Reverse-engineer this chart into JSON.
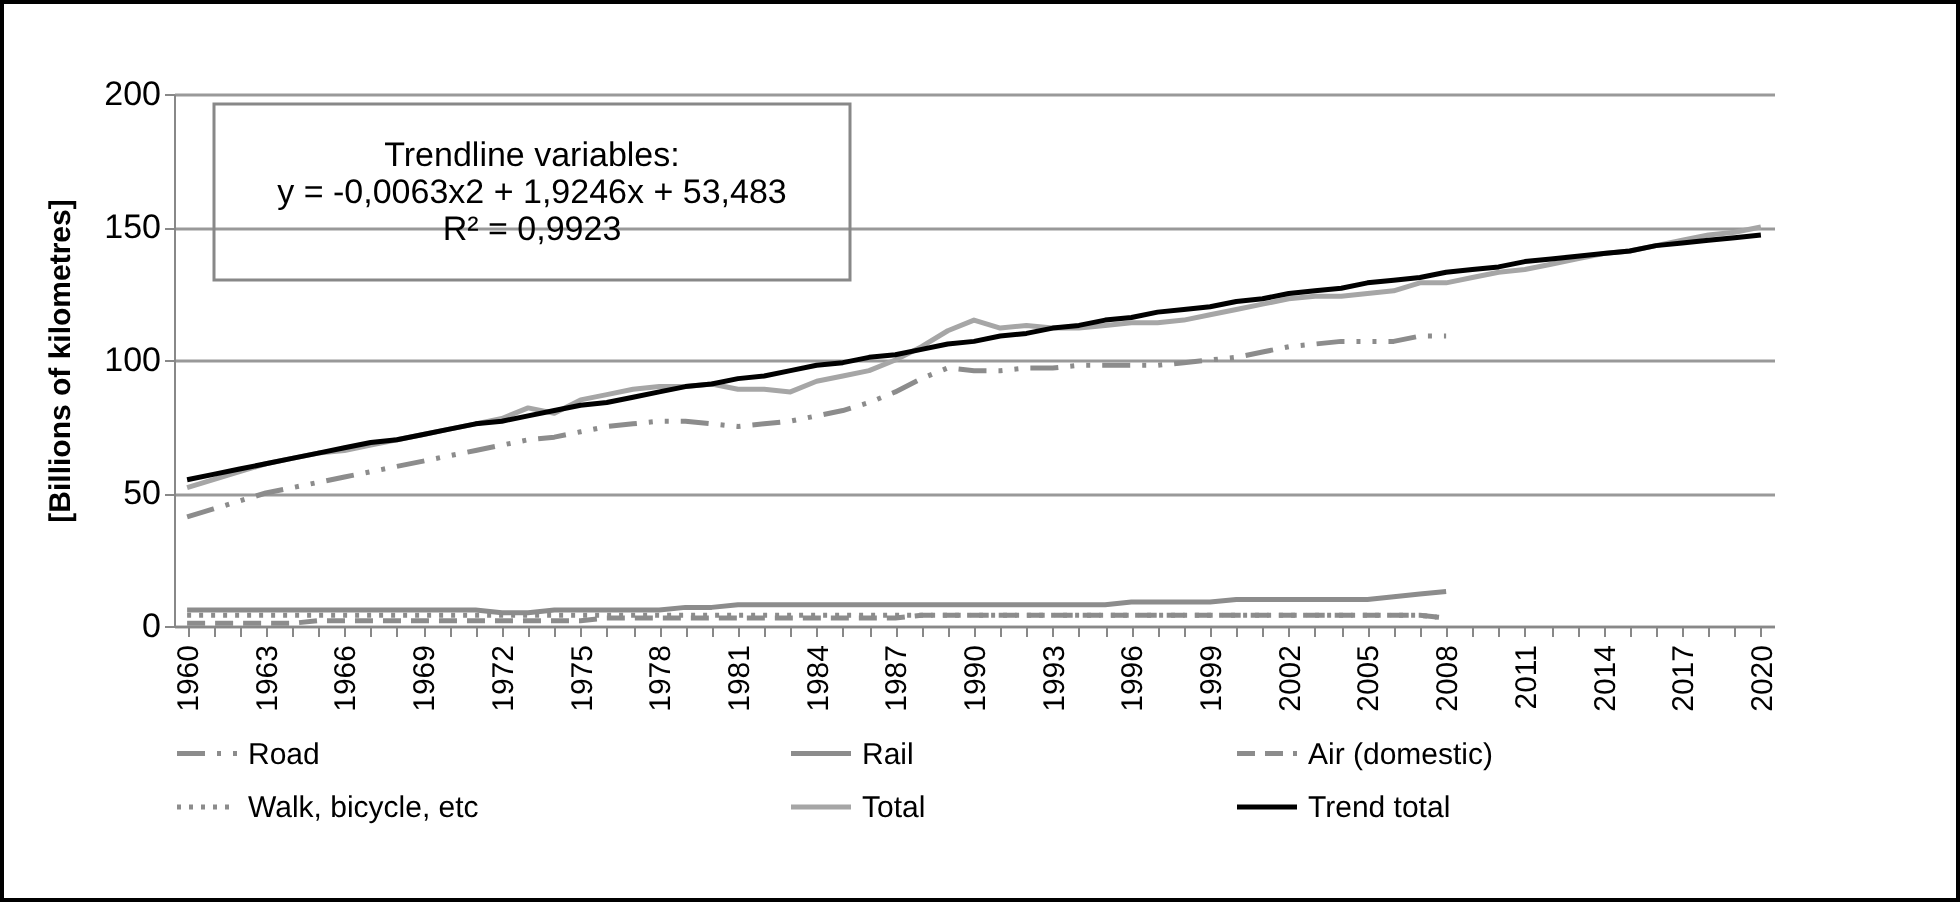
{
  "chart_data": {
    "type": "line",
    "annotations": [
      "Trendline variables:",
      "y = -0,0063x2 + 1,9246x + 53,483",
      "R² = 0,9923"
    ],
    "ylabel": "[Billions of kilometres]",
    "categories": [
      "1960",
      null,
      null,
      "1963",
      null,
      null,
      "1966",
      null,
      null,
      "1969",
      null,
      null,
      "1972",
      null,
      null,
      "1975",
      null,
      null,
      "1978",
      null,
      null,
      "1981",
      null,
      null,
      "1984",
      null,
      null,
      "1987",
      null,
      null,
      "1990",
      null,
      null,
      "1993",
      null,
      null,
      "1996",
      null,
      null,
      "1999",
      null,
      null,
      "2002",
      null,
      null,
      "2005",
      null,
      null,
      "2008",
      null,
      null,
      "2011",
      null,
      null,
      "2014",
      null,
      null,
      "2017",
      null,
      null,
      "2020"
    ],
    "ylim": [
      0,
      200
    ],
    "yticks": [
      0,
      50,
      100,
      150,
      200
    ],
    "grid": "y",
    "legend": "bottom",
    "marker": "none",
    "series": [
      {
        "name": "Road",
        "color": "#8c8c8c",
        "line_style": "dashdot",
        "values": [
          41,
          44,
          47,
          50,
          52,
          54,
          56,
          58,
          60,
          62,
          64,
          66,
          68,
          70,
          71,
          73,
          75,
          76,
          77,
          77,
          76,
          75,
          76,
          77,
          79,
          81,
          84,
          88,
          93,
          97,
          96,
          96,
          97,
          97,
          98,
          98,
          98,
          98,
          99,
          100,
          101,
          103,
          105,
          106,
          107,
          107,
          107,
          109,
          109,
          null,
          null,
          null,
          null,
          null,
          null,
          null,
          null,
          null,
          null,
          null,
          null
        ]
      },
      {
        "name": "Rail",
        "color": "#8c8c8c",
        "line_style": "solid",
        "values": [
          6,
          6,
          6,
          6,
          6,
          6,
          6,
          6,
          6,
          6,
          6,
          6,
          5,
          5,
          6,
          6,
          6,
          6,
          6,
          7,
          7,
          8,
          8,
          8,
          8,
          8,
          8,
          8,
          8,
          8,
          8,
          8,
          8,
          8,
          8,
          8,
          9,
          9,
          9,
          9,
          10,
          10,
          10,
          10,
          10,
          10,
          11,
          12,
          13,
          null,
          null,
          null,
          null,
          null,
          null,
          null,
          null,
          null,
          null,
          null,
          null
        ]
      },
      {
        "name": "Air (domestic)",
        "color": "#8c8c8c",
        "line_style": "dashed",
        "values": [
          1,
          1,
          1,
          1,
          1,
          2,
          2,
          2,
          2,
          2,
          2,
          2,
          2,
          2,
          2,
          2,
          3,
          3,
          3,
          3,
          3,
          3,
          3,
          3,
          3,
          3,
          3,
          3,
          4,
          4,
          4,
          4,
          4,
          4,
          4,
          4,
          4,
          4,
          4,
          4,
          4,
          4,
          4,
          4,
          4,
          4,
          4,
          4,
          3,
          null,
          null,
          null,
          null,
          null,
          null,
          null,
          null,
          null,
          null,
          null,
          null
        ]
      },
      {
        "name": "Walk, bicycle, etc",
        "color": "#8c8c8c",
        "line_style": "dotted",
        "values": [
          4,
          4,
          4,
          4,
          4,
          4,
          4,
          4,
          4,
          4,
          4,
          4,
          4,
          4,
          4,
          4,
          4,
          4,
          4,
          4,
          4,
          4,
          4,
          4,
          4,
          4,
          4,
          4,
          4,
          4,
          4,
          4,
          4,
          4,
          4,
          4,
          4,
          4,
          4,
          4,
          4,
          4,
          4,
          4,
          4,
          4,
          4,
          4,
          3,
          null,
          null,
          null,
          null,
          null,
          null,
          null,
          null,
          null,
          null,
          null,
          null
        ]
      },
      {
        "name": "Total",
        "color": "#a6a6a6",
        "line_style": "solid",
        "values": [
          52,
          55,
          58,
          61,
          63,
          65,
          66,
          68,
          70,
          72,
          74,
          76,
          78,
          82,
          80,
          85,
          87,
          89,
          90,
          90,
          91,
          89,
          89,
          88,
          92,
          94,
          96,
          100,
          105,
          111,
          115,
          112,
          113,
          112,
          112,
          113,
          114,
          114,
          115,
          117,
          119,
          121,
          123,
          124,
          124,
          125,
          126,
          129,
          129,
          131,
          133,
          134,
          136,
          138,
          140,
          141,
          143,
          145,
          147,
          148,
          150
        ]
      },
      {
        "name": "Trend total",
        "color": "#000000",
        "line_style": "solid",
        "values": [
          55,
          57,
          59,
          61,
          63,
          65,
          67,
          69,
          70,
          72,
          74,
          76,
          77,
          79,
          81,
          83,
          84,
          86,
          88,
          90,
          91,
          93,
          94,
          96,
          98,
          99,
          101,
          102,
          104,
          106,
          107,
          109,
          110,
          112,
          113,
          115,
          116,
          118,
          119,
          120,
          122,
          123,
          125,
          126,
          127,
          129,
          130,
          131,
          133,
          134,
          135,
          137,
          138,
          139,
          140,
          141,
          143,
          144,
          145,
          146,
          147
        ]
      }
    ]
  }
}
